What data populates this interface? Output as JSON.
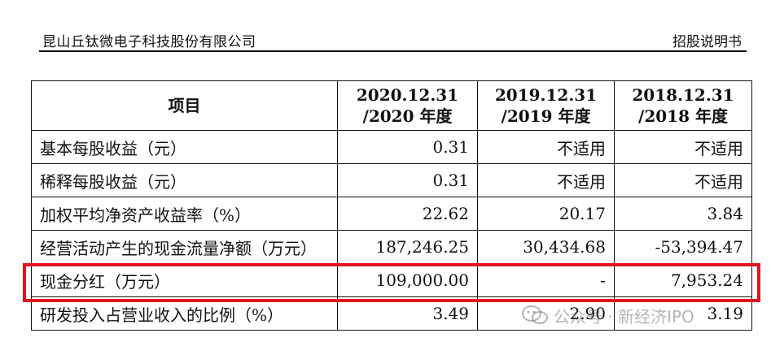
{
  "header": {
    "company": "昆山丘钛微电子科技股份有限公司",
    "doc_type": "招股说明书"
  },
  "table": {
    "columns": [
      {
        "line1": "项目",
        "line2": ""
      },
      {
        "line1": "2020.12.31",
        "line2": "/2020 年度"
      },
      {
        "line1": "2019.12.31",
        "line2": "/2019 年度"
      },
      {
        "line1": "2018.12.31",
        "line2": "/2018 年度"
      }
    ],
    "rows": [
      {
        "label": "基本每股收益（元）",
        "v2020": "0.31",
        "v2019": "不适用",
        "v2018": "不适用"
      },
      {
        "label": "稀释每股收益（元）",
        "v2020": "0.31",
        "v2019": "不适用",
        "v2018": "不适用"
      },
      {
        "label": "加权平均净资产收益率（%）",
        "v2020": "22.62",
        "v2019": "20.17",
        "v2018": "3.84"
      },
      {
        "label": "经营活动产生的现金流量净额（万元）",
        "v2020": "187,246.25",
        "v2019": "30,434.68",
        "v2018": "-53,394.47"
      },
      {
        "label": "现金分红（万元）",
        "v2020": "109,000.00",
        "v2019": "-",
        "v2018": "7,953.24"
      },
      {
        "label": "研发投入占营业收入的比例（%）",
        "v2020": "3.49",
        "v2019": "2.90",
        "v2018": "3.19"
      }
    ]
  },
  "highlight_color": "#e3131e",
  "watermark": {
    "text": "公众号 · 新经济IPO",
    "icon": "wechat-icon"
  }
}
